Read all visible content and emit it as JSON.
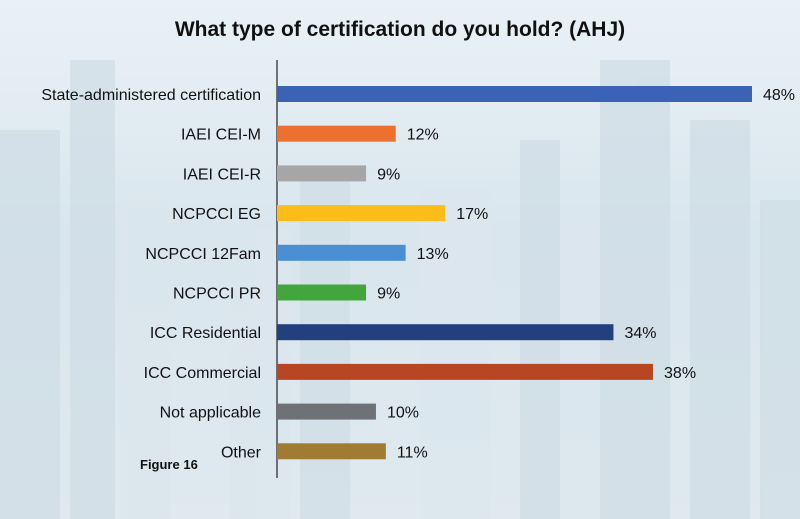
{
  "chart_data": {
    "type": "bar",
    "orientation": "horizontal",
    "title": "What type of certification do you hold? (AHJ)",
    "figure_label": "Figure 16",
    "categories": [
      "State-administered certification",
      "IAEI CEI-M",
      "IAEI CEI-R",
      "NCPCCI EG",
      "NCPCCI 12Fam",
      "NCPCCI PR",
      "ICC Residential",
      "ICC Commercial",
      "Not applicable",
      "Other"
    ],
    "values": [
      48,
      12,
      9,
      17,
      13,
      9,
      34,
      38,
      10,
      11
    ],
    "value_labels": [
      "48%",
      "12%",
      "9%",
      "17%",
      "13%",
      "9%",
      "34%",
      "38%",
      "10%",
      "11%"
    ],
    "colors": [
      "#3b63b5",
      "#ec7130",
      "#a6a6a6",
      "#fcbd1b",
      "#4a8fd6",
      "#43a63c",
      "#243f7e",
      "#b94623",
      "#6e7277",
      "#a07c33"
    ],
    "xlim": [
      0,
      48
    ],
    "unit": "%"
  }
}
